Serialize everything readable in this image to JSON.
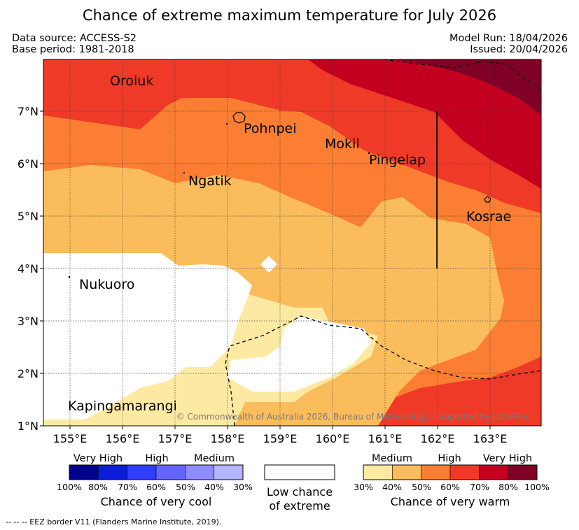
{
  "title": "Chance of extreme maximum temperature for July 2026",
  "meta": {
    "data_source": "Data source: ACCESS-S2",
    "base_period": "Base period: 1981-2018",
    "model_run": "Model Run: 18/04/2026",
    "issued": "Issued: 20/04/2026"
  },
  "map": {
    "x_ticks": [
      "155°E",
      "156°E",
      "157°E",
      "158°E",
      "159°E",
      "160°E",
      "161°E",
      "162°E",
      "163°E"
    ],
    "y_ticks": [
      "7°N",
      "6°N",
      "5°N",
      "4°N",
      "3°N",
      "2°N",
      "1°N"
    ],
    "places": {
      "oroluk": "Oroluk",
      "pohnpei": "Pohnpei",
      "mokil": "Mokil",
      "pingelap": "Pingelap",
      "ngatik": "Ngatik",
      "kosrae": "Kosrae",
      "nukuoro": "Nukuoro",
      "kapingamarangi": "Kapingamarangi"
    },
    "copyright": "© Commonwealth of Australia 2026, Bureau of Meteorology, supported by COSPPac"
  },
  "legend": {
    "cool": {
      "labels": [
        "Very High",
        "High",
        "Medium"
      ],
      "ticks": [
        "100%",
        "80%",
        "70%",
        "60%",
        "50%",
        "40%",
        "30%"
      ],
      "colors": [
        "#00008f",
        "#0a1ed6",
        "#2f3dff",
        "#6464ff",
        "#8c8cff",
        "#b4b4ff"
      ],
      "caption": "Chance of very cool"
    },
    "low": {
      "caption_line1": "Low chance",
      "caption_line2": "of extreme"
    },
    "warm": {
      "labels": [
        "Medium",
        "High",
        "Very High"
      ],
      "ticks": [
        "30%",
        "40%",
        "50%",
        "60%",
        "70%",
        "80%",
        "100%"
      ],
      "colors": [
        "#fdeaa2",
        "#fbbd5c",
        "#fb7e32",
        "#ee3a27",
        "#c3001f",
        "#800026"
      ],
      "caption": "Chance of very warm"
    }
  },
  "footer": "--  --  -- EEZ border V11 (Flanders Marine Institute, 2019).",
  "colors": {
    "low": "#ffffff",
    "medium": "#fdeaa2",
    "c40": "#fbbd5c",
    "c50": "#fb7e32",
    "c60": "#ee3a27",
    "c70": "#c3001f",
    "c80": "#800026"
  }
}
